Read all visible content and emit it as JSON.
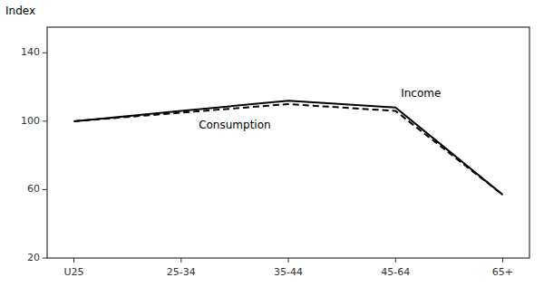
{
  "chart_data": {
    "type": "line",
    "y_label": "Index",
    "categories": [
      "U25",
      "25-34",
      "35-44",
      "45-64",
      "65+"
    ],
    "series": [
      {
        "name": "Income",
        "color": "#000000",
        "line_style": "solid",
        "values": [
          100,
          106,
          112,
          108,
          57
        ]
      },
      {
        "name": "Consumption",
        "color": "#000000",
        "line_style": "dashed",
        "values": [
          100,
          105,
          110,
          106,
          57
        ]
      }
    ],
    "ylim": [
      20,
      155
    ],
    "yticks": [
      20,
      60,
      100,
      140
    ],
    "grid": false
  }
}
